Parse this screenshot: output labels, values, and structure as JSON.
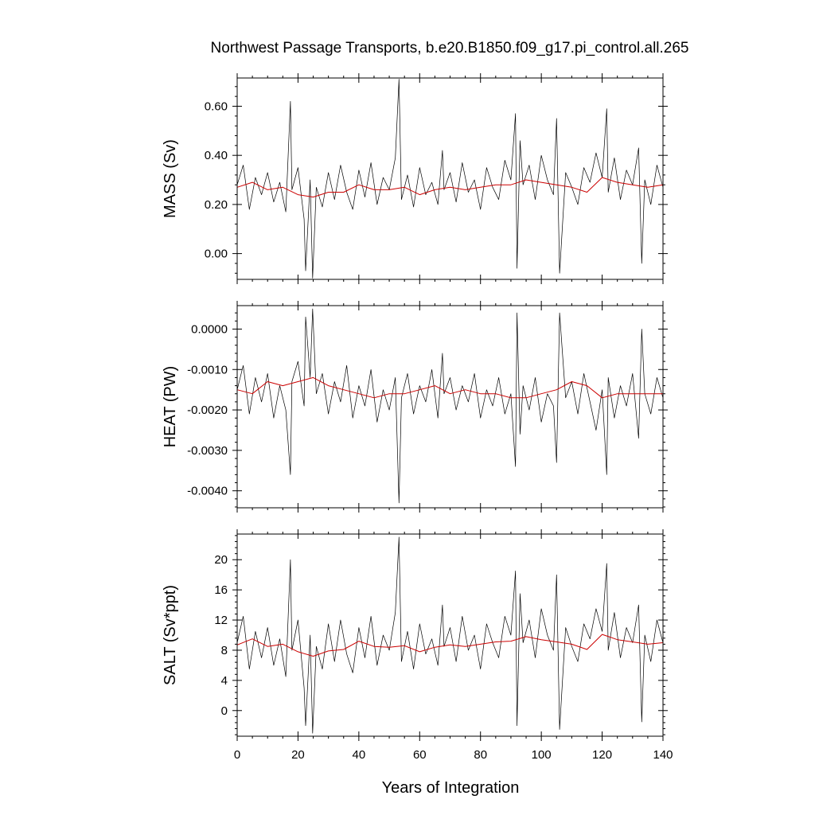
{
  "figure": {
    "title": "Northwest Passage Transports, b.e20.B1850.f09_g17.pi_control.all.265",
    "xlabel": "Years of Integration"
  },
  "chart_data": [
    {
      "type": "line",
      "panel": "mass",
      "ylabel": "MASS (Sv)",
      "xlim": [
        0,
        140
      ],
      "ylim": [
        -0.105,
        0.715
      ],
      "x_ticks": [
        0,
        20,
        40,
        60,
        80,
        100,
        120,
        140
      ],
      "x_tick_labels": [
        "0",
        "20",
        "40",
        "60",
        "80",
        "100",
        "120",
        "140"
      ],
      "y_ticks": [
        0.0,
        0.2,
        0.4,
        0.6
      ],
      "y_tick_labels": [
        "0.00",
        "0.20",
        "0.40",
        "0.60"
      ],
      "series": [
        {
          "style": "monthly",
          "color": "#000000",
          "x": [
            0,
            2,
            4,
            6,
            8,
            10,
            12,
            14,
            16,
            17.5,
            18,
            20,
            22,
            22.5,
            24,
            24.8,
            26,
            28,
            30,
            32,
            34,
            36,
            38,
            40,
            42,
            44,
            46,
            48,
            50,
            52,
            53.2,
            54,
            56,
            58,
            60,
            62,
            64,
            66,
            67.5,
            68,
            70,
            72,
            74,
            76,
            78,
            80,
            82,
            84,
            86,
            88,
            90,
            91.5,
            92,
            93,
            94,
            96,
            98,
            100,
            102,
            104,
            105,
            106,
            108,
            110,
            112,
            114,
            116,
            118,
            120,
            121.5,
            122,
            124,
            126,
            128,
            130,
            132,
            133,
            134,
            136,
            138,
            140
          ],
          "y": [
            0.28,
            0.36,
            0.18,
            0.31,
            0.24,
            0.33,
            0.21,
            0.29,
            0.17,
            0.62,
            0.26,
            0.35,
            0.14,
            -0.07,
            0.3,
            -0.1,
            0.27,
            0.19,
            0.33,
            0.22,
            0.36,
            0.25,
            0.18,
            0.34,
            0.23,
            0.37,
            0.2,
            0.31,
            0.26,
            0.39,
            0.71,
            0.22,
            0.32,
            0.19,
            0.35,
            0.24,
            0.29,
            0.2,
            0.42,
            0.26,
            0.33,
            0.21,
            0.37,
            0.25,
            0.3,
            0.18,
            0.35,
            0.27,
            0.22,
            0.38,
            0.3,
            0.57,
            -0.06,
            0.46,
            0.28,
            0.36,
            0.22,
            0.4,
            0.3,
            0.24,
            0.55,
            -0.08,
            0.33,
            0.27,
            0.2,
            0.35,
            0.29,
            0.41,
            0.31,
            0.59,
            0.25,
            0.39,
            0.22,
            0.34,
            0.28,
            0.43,
            -0.04,
            0.3,
            0.2,
            0.36,
            0.27
          ]
        },
        {
          "style": "annual",
          "color": "#cc0000",
          "x": [
            0,
            5,
            10,
            15,
            20,
            25,
            30,
            35,
            40,
            45,
            50,
            55,
            60,
            65,
            70,
            75,
            80,
            85,
            90,
            95,
            100,
            105,
            110,
            115,
            120,
            125,
            130,
            135,
            140
          ],
          "y": [
            0.27,
            0.29,
            0.26,
            0.27,
            0.24,
            0.23,
            0.25,
            0.25,
            0.28,
            0.26,
            0.26,
            0.27,
            0.24,
            0.26,
            0.27,
            0.26,
            0.27,
            0.28,
            0.28,
            0.3,
            0.29,
            0.28,
            0.27,
            0.25,
            0.31,
            0.29,
            0.28,
            0.27,
            0.28
          ]
        }
      ]
    },
    {
      "type": "line",
      "panel": "heat",
      "ylabel": "HEAT (PW)",
      "xlim": [
        0,
        140
      ],
      "ylim": [
        -0.00442,
        0.00058
      ],
      "x_ticks": [
        0,
        20,
        40,
        60,
        80,
        100,
        120,
        140
      ],
      "x_tick_labels": [
        "0",
        "20",
        "40",
        "60",
        "80",
        "100",
        "120",
        "140"
      ],
      "y_ticks": [
        -0.004,
        -0.003,
        -0.002,
        -0.001,
        0.0
      ],
      "y_tick_labels": [
        "-0.0040",
        "-0.0030",
        "-0.0020",
        "-0.0010",
        "0.0000"
      ],
      "series": [
        {
          "style": "monthly",
          "color": "#000000",
          "x": [
            0,
            2,
            4,
            6,
            8,
            10,
            12,
            14,
            16,
            17.5,
            18,
            20,
            22,
            22.5,
            24,
            24.8,
            26,
            28,
            30,
            32,
            34,
            36,
            38,
            40,
            42,
            44,
            46,
            48,
            50,
            52,
            53.2,
            54,
            56,
            58,
            60,
            62,
            64,
            66,
            67.5,
            68,
            70,
            72,
            74,
            76,
            78,
            80,
            82,
            84,
            86,
            88,
            90,
            91.5,
            92,
            93,
            94,
            96,
            98,
            100,
            102,
            104,
            105,
            106,
            108,
            110,
            112,
            114,
            116,
            118,
            120,
            121.5,
            122,
            124,
            126,
            128,
            130,
            132,
            133,
            134,
            136,
            138,
            140
          ],
          "y": [
            -0.0015,
            -0.0009,
            -0.0021,
            -0.0012,
            -0.0018,
            -0.0011,
            -0.0022,
            -0.0014,
            -0.002,
            -0.0036,
            -0.0013,
            -0.0008,
            -0.0019,
            0.0003,
            -0.0012,
            0.0005,
            -0.0016,
            -0.0011,
            -0.0021,
            -0.0013,
            -0.0018,
            -0.0009,
            -0.0022,
            -0.0014,
            -0.0019,
            -0.001,
            -0.0023,
            -0.0015,
            -0.002,
            -0.0012,
            -0.0043,
            -0.0017,
            -0.0011,
            -0.0021,
            -0.0014,
            -0.0018,
            -0.001,
            -0.0022,
            -0.0006,
            -0.0016,
            -0.0012,
            -0.002,
            -0.0014,
            -0.0018,
            -0.0011,
            -0.0022,
            -0.0015,
            -0.0019,
            -0.0012,
            -0.0021,
            -0.0016,
            -0.0034,
            0.0004,
            -0.0026,
            -0.0014,
            -0.002,
            -0.0012,
            -0.0023,
            -0.0016,
            -0.0019,
            -0.0033,
            0.0004,
            -0.0017,
            -0.0013,
            -0.0021,
            -0.0011,
            -0.0018,
            -0.0025,
            -0.0015,
            -0.0036,
            -0.0012,
            -0.0022,
            -0.0014,
            -0.0019,
            -0.0011,
            -0.0027,
            0.0,
            -0.0016,
            -0.0021,
            -0.0012,
            -0.0017
          ]
        },
        {
          "style": "annual",
          "color": "#cc0000",
          "x": [
            0,
            5,
            10,
            15,
            20,
            25,
            30,
            35,
            40,
            45,
            50,
            55,
            60,
            65,
            70,
            75,
            80,
            85,
            90,
            95,
            100,
            105,
            110,
            115,
            120,
            125,
            130,
            135,
            140
          ],
          "y": [
            -0.0015,
            -0.0016,
            -0.0013,
            -0.0014,
            -0.0013,
            -0.0012,
            -0.0014,
            -0.0015,
            -0.0016,
            -0.0017,
            -0.0016,
            -0.0016,
            -0.0015,
            -0.0014,
            -0.0016,
            -0.0015,
            -0.0016,
            -0.0016,
            -0.0017,
            -0.0017,
            -0.0016,
            -0.0015,
            -0.0013,
            -0.0014,
            -0.0017,
            -0.0016,
            -0.0016,
            -0.0016,
            -0.0016
          ]
        }
      ]
    },
    {
      "type": "line",
      "panel": "salt",
      "ylabel": "SALT (Sv*ppt)",
      "xlim": [
        0,
        140
      ],
      "ylim": [
        -3.4,
        23.4
      ],
      "x_ticks": [
        0,
        20,
        40,
        60,
        80,
        100,
        120,
        140
      ],
      "x_tick_labels": [
        "0",
        "20",
        "40",
        "60",
        "80",
        "100",
        "120",
        "140"
      ],
      "y_ticks": [
        0,
        4,
        8,
        12,
        16,
        20
      ],
      "y_tick_labels": [
        "0",
        "4",
        "8",
        "12",
        "16",
        "20"
      ],
      "series": [
        {
          "style": "monthly",
          "color": "#000000",
          "x": [
            0,
            2,
            4,
            6,
            8,
            10,
            12,
            14,
            16,
            17.5,
            18,
            20,
            22,
            22.5,
            24,
            24.8,
            26,
            28,
            30,
            32,
            34,
            36,
            38,
            40,
            42,
            44,
            46,
            48,
            50,
            52,
            53.2,
            54,
            56,
            58,
            60,
            62,
            64,
            66,
            67.5,
            68,
            70,
            72,
            74,
            76,
            78,
            80,
            82,
            84,
            86,
            88,
            90,
            91.5,
            92,
            93,
            94,
            96,
            98,
            100,
            102,
            104,
            105,
            106,
            108,
            110,
            112,
            114,
            116,
            118,
            120,
            121.5,
            122,
            124,
            126,
            128,
            130,
            132,
            133,
            134,
            136,
            138,
            140
          ],
          "y": [
            9.0,
            12.5,
            5.5,
            10.5,
            7.0,
            11.0,
            6.0,
            9.5,
            4.5,
            20.0,
            8.0,
            12.0,
            3.0,
            -2.0,
            10.0,
            -3.0,
            8.5,
            5.5,
            11.5,
            6.5,
            12.0,
            7.5,
            5.0,
            11.0,
            7.0,
            12.5,
            6.0,
            10.0,
            8.0,
            13.0,
            23.0,
            6.5,
            10.5,
            5.5,
            11.5,
            7.5,
            9.5,
            6.0,
            14.0,
            8.5,
            11.0,
            6.5,
            12.5,
            8.0,
            10.0,
            5.5,
            11.5,
            9.0,
            7.0,
            12.5,
            10.0,
            18.5,
            -2.0,
            15.5,
            9.0,
            12.0,
            7.0,
            13.5,
            10.0,
            8.0,
            18.0,
            -2.5,
            11.0,
            8.5,
            6.5,
            11.5,
            9.5,
            13.5,
            10.5,
            19.5,
            8.0,
            13.0,
            7.0,
            11.0,
            9.0,
            14.0,
            -1.5,
            10.0,
            6.5,
            12.0,
            9.0
          ]
        },
        {
          "style": "annual",
          "color": "#cc0000",
          "x": [
            0,
            5,
            10,
            15,
            20,
            25,
            30,
            35,
            40,
            45,
            50,
            55,
            60,
            65,
            70,
            75,
            80,
            85,
            90,
            95,
            100,
            105,
            110,
            115,
            120,
            125,
            130,
            135,
            140
          ],
          "y": [
            8.7,
            9.5,
            8.5,
            8.8,
            7.8,
            7.2,
            7.9,
            8.1,
            9.2,
            8.5,
            8.4,
            8.6,
            7.8,
            8.4,
            8.7,
            8.5,
            8.8,
            9.1,
            9.2,
            9.8,
            9.4,
            9.1,
            8.8,
            8.1,
            10.1,
            9.4,
            9.1,
            8.8,
            9.0
          ]
        }
      ]
    }
  ]
}
